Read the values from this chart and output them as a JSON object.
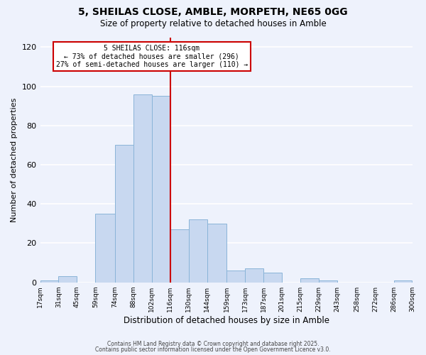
{
  "title": "5, SHEILAS CLOSE, AMBLE, MORPETH, NE65 0GG",
  "subtitle": "Size of property relative to detached houses in Amble",
  "xlabel": "Distribution of detached houses by size in Amble",
  "ylabel": "Number of detached properties",
  "bar_color": "#c8d8f0",
  "bar_edge_color": "#8ab4d8",
  "vline_x": 116,
  "vline_color": "#cc0000",
  "annotation_line1": "5 SHEILAS CLOSE: 116sqm",
  "annotation_line2": "← 73% of detached houses are smaller (296)",
  "annotation_line3": "27% of semi-detached houses are larger (110) →",
  "annotation_box_color": "#ffffff",
  "annotation_box_edge": "#cc0000",
  "bin_edges": [
    17,
    31,
    45,
    59,
    74,
    88,
    102,
    116,
    130,
    144,
    159,
    173,
    187,
    201,
    215,
    229,
    243,
    258,
    272,
    286,
    300
  ],
  "bar_heights": [
    1,
    3,
    0,
    35,
    70,
    96,
    95,
    27,
    32,
    30,
    6,
    7,
    5,
    0,
    2,
    1,
    0,
    0,
    0,
    1
  ],
  "tick_labels": [
    "17sqm",
    "31sqm",
    "45sqm",
    "59sqm",
    "74sqm",
    "88sqm",
    "102sqm",
    "116sqm",
    "130sqm",
    "144sqm",
    "159sqm",
    "173sqm",
    "187sqm",
    "201sqm",
    "215sqm",
    "229sqm",
    "243sqm",
    "258sqm",
    "272sqm",
    "286sqm",
    "300sqm"
  ],
  "ylim": [
    0,
    125
  ],
  "yticks": [
    0,
    20,
    40,
    60,
    80,
    100,
    120
  ],
  "footer1": "Contains HM Land Registry data © Crown copyright and database right 2025.",
  "footer2": "Contains public sector information licensed under the Open Government Licence v3.0.",
  "bg_color": "#eef2fc",
  "plot_bg_color": "#eef2fc",
  "grid_color": "#ffffff"
}
